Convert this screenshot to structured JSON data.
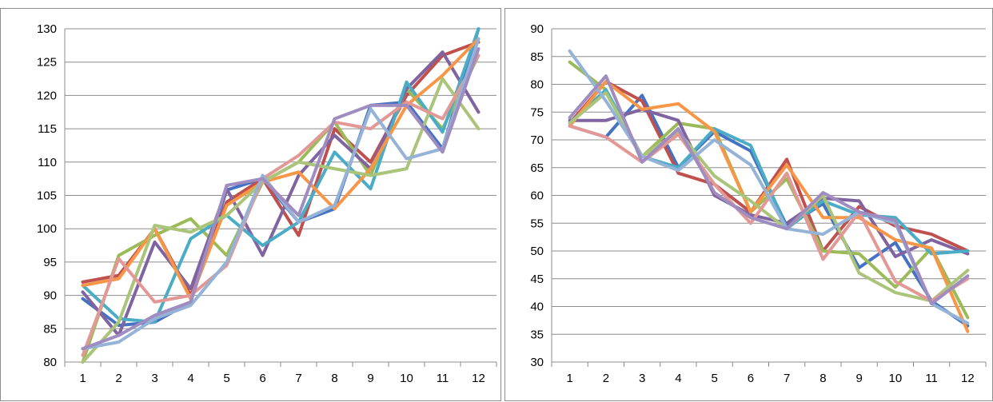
{
  "chart_data": [
    {
      "type": "line",
      "x": [
        1,
        2,
        3,
        4,
        5,
        6,
        7,
        8,
        9,
        10,
        11,
        12
      ],
      "x_tick_labels": [
        "1",
        "2",
        "3",
        "4",
        "5",
        "6",
        "7",
        "8",
        "9",
        "10",
        "11",
        "12"
      ],
      "y_tick_labels": [
        "80",
        "85",
        "90",
        "95",
        "100",
        "105",
        "110",
        "115",
        "120",
        "125",
        "130"
      ],
      "ylim": [
        80,
        130
      ],
      "grid": true,
      "legend": "none",
      "series": [
        {
          "color": "#4472C4",
          "values": [
            89.5,
            85.5,
            86,
            89,
            105.8,
            107.5,
            101,
            103,
            118.5,
            119,
            112,
            130
          ]
        },
        {
          "color": "#C0504D",
          "values": [
            92,
            93,
            100,
            90,
            104,
            107.5,
            99,
            115,
            110,
            120,
            126,
            128
          ]
        },
        {
          "color": "#9BBB59",
          "values": [
            80,
            96,
            99,
            101.5,
            96,
            107,
            110,
            116,
            108,
            121,
            115,
            126
          ]
        },
        {
          "color": "#8064A2",
          "values": [
            90.5,
            84,
            98,
            91,
            106,
            96,
            108,
            114,
            109,
            121,
            126.5,
            117.5
          ]
        },
        {
          "color": "#4BACC6",
          "values": [
            91.5,
            86.5,
            86,
            98.5,
            102,
            97.5,
            101,
            111.5,
            106,
            122,
            114.5,
            130
          ]
        },
        {
          "color": "#F79646",
          "values": [
            91.5,
            92.5,
            100,
            89.5,
            103.5,
            107,
            108.5,
            103,
            109,
            118.5,
            123,
            128.5
          ]
        },
        {
          "color": "#AAC47A",
          "values": [
            80,
            86,
            100.5,
            99.5,
            102,
            107,
            110,
            109,
            108,
            109,
            122.5,
            115
          ]
        },
        {
          "color": "#E39896",
          "values": [
            81,
            95.5,
            89,
            90,
            94.5,
            107.5,
            111,
            116,
            115,
            119,
            116.5,
            126
          ]
        },
        {
          "color": "#95B3D7",
          "values": [
            82,
            83,
            86.5,
            88.5,
            95,
            108,
            101,
            103.5,
            118,
            110.5,
            112,
            128.5
          ]
        },
        {
          "color": "#9F8CC0",
          "values": [
            82,
            84,
            87,
            89,
            106.5,
            107.5,
            102,
            116.5,
            118.5,
            118.5,
            111.5,
            127
          ]
        }
      ]
    },
    {
      "type": "line",
      "x": [
        1,
        2,
        3,
        4,
        5,
        6,
        7,
        8,
        9,
        10,
        11,
        12
      ],
      "x_tick_labels": [
        "1",
        "2",
        "3",
        "4",
        "5",
        "6",
        "7",
        "8",
        "9",
        "10",
        "11",
        "12"
      ],
      "y_tick_labels": [
        "30",
        "35",
        "40",
        "45",
        "50",
        "55",
        "60",
        "65",
        "70",
        "75",
        "80",
        "85",
        "90"
      ],
      "ylim": [
        30,
        90
      ],
      "grid": true,
      "legend": "none",
      "series": [
        {
          "color": "#4472C4",
          "values": [
            72.5,
            70.5,
            78,
            65,
            71.5,
            68,
            54.5,
            58.5,
            47,
            51.5,
            41,
            36.5
          ]
        },
        {
          "color": "#C0504D",
          "values": [
            73,
            80.5,
            77,
            64,
            62,
            57,
            66.5,
            50,
            58,
            54.5,
            53,
            50
          ]
        },
        {
          "color": "#9BBB59",
          "values": [
            84,
            79,
            67,
            73,
            72,
            57,
            63,
            50,
            49.5,
            43.5,
            50.5,
            38
          ]
        },
        {
          "color": "#8064A2",
          "values": [
            73.5,
            73.5,
            75.5,
            73.5,
            60,
            56.5,
            55,
            59.5,
            59,
            49,
            52,
            49.5
          ]
        },
        {
          "color": "#4BACC6",
          "values": [
            73,
            79,
            67,
            65,
            72,
            69,
            54,
            59,
            56.5,
            56,
            49.5,
            50
          ]
        },
        {
          "color": "#F79646",
          "values": [
            72.5,
            80.5,
            75.5,
            76.5,
            71.5,
            57,
            65.5,
            56,
            56,
            52,
            50.5,
            35.5
          ]
        },
        {
          "color": "#AAC47A",
          "values": [
            73,
            78.5,
            67,
            71.5,
            63.5,
            59,
            54,
            60,
            46,
            42.5,
            41,
            46.5
          ]
        },
        {
          "color": "#E39896",
          "values": [
            72.5,
            70.5,
            66,
            71,
            62,
            55,
            64,
            48.5,
            57,
            44.5,
            41,
            45
          ]
        },
        {
          "color": "#95B3D7",
          "values": [
            86,
            77,
            67,
            64.5,
            70,
            65.5,
            54,
            53,
            57,
            55,
            40.5,
            37
          ]
        },
        {
          "color": "#9F8CC0",
          "values": [
            74,
            81.5,
            66,
            72,
            60.5,
            56,
            54,
            60.5,
            57,
            55.5,
            40.5,
            45.5
          ]
        }
      ]
    }
  ]
}
